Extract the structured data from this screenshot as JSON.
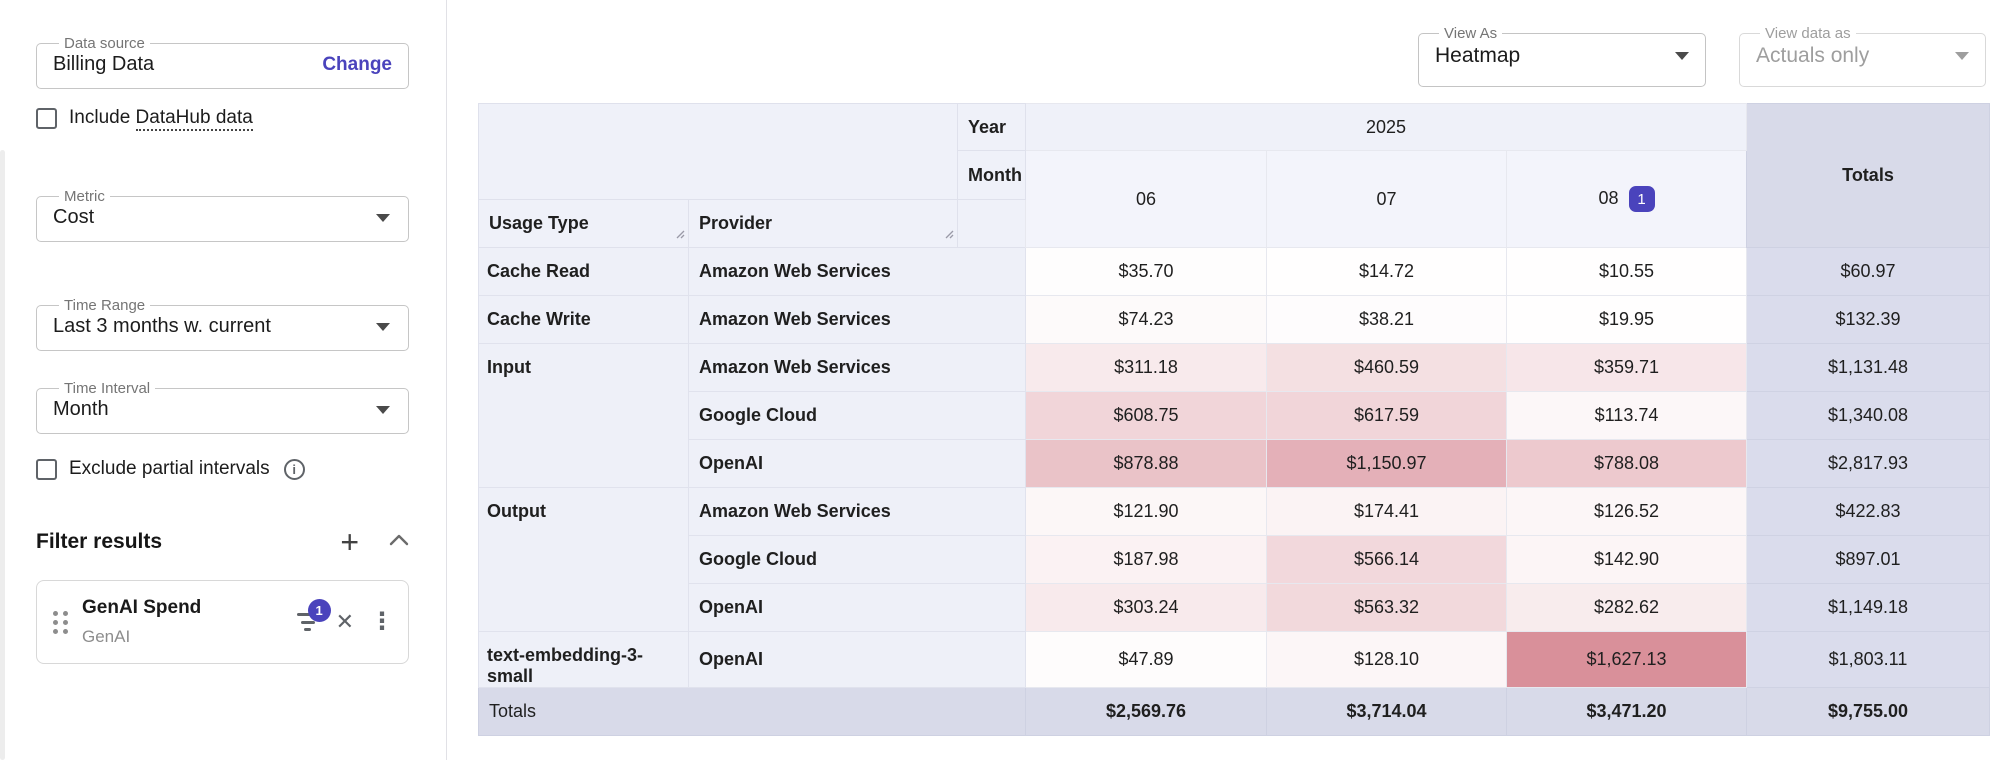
{
  "accent": "#4a43bc",
  "sidebar": {
    "data_source": {
      "label": "Data source",
      "value": "Billing Data",
      "action": "Change"
    },
    "include_datahub": {
      "prefix": "Include ",
      "link": "DataHub data"
    },
    "metric": {
      "label": "Metric",
      "value": "Cost"
    },
    "time_range": {
      "label": "Time Range",
      "value": "Last 3 months w. current"
    },
    "time_interval": {
      "label": "Time Interval",
      "value": "Month"
    },
    "exclude_partial": {
      "label": "Exclude partial intervals"
    },
    "filters": {
      "title": "Filter results",
      "items": [
        {
          "name": "GenAI Spend",
          "subtitle": "GenAI",
          "badge": "1"
        }
      ]
    }
  },
  "toolbar": {
    "view_as": {
      "label": "View As",
      "value": "Heatmap"
    },
    "view_data_as": {
      "label": "View data as",
      "value": "Actuals only",
      "disabled": true
    }
  },
  "pivot": {
    "year_label": "Year",
    "month_label": "Month",
    "year_value": "2025",
    "months": [
      "06",
      "07",
      "08"
    ],
    "month_badge": {
      "month": "08",
      "value": "1"
    },
    "dim1": "Usage Type",
    "dim2": "Provider",
    "totals_header": "Totals",
    "heat": {
      "max": 1627.13,
      "min_color": "#ffffff",
      "max_color": "#d9909a"
    },
    "groups": [
      {
        "usage_type": "Cache Read",
        "providers": [
          {
            "name": "Amazon Web Services",
            "values": [
              "$35.70",
              "$14.72",
              "$10.55"
            ],
            "heat": [
              35.7,
              14.72,
              10.55
            ],
            "total": "$60.97"
          }
        ]
      },
      {
        "usage_type": "Cache Write",
        "providers": [
          {
            "name": "Amazon Web Services",
            "values": [
              "$74.23",
              "$38.21",
              "$19.95"
            ],
            "heat": [
              74.23,
              38.21,
              19.95
            ],
            "total": "$132.39"
          }
        ]
      },
      {
        "usage_type": "Input",
        "providers": [
          {
            "name": "Amazon Web Services",
            "values": [
              "$311.18",
              "$460.59",
              "$359.71"
            ],
            "heat": [
              311.18,
              460.59,
              359.71
            ],
            "total": "$1,131.48"
          },
          {
            "name": "Google Cloud",
            "values": [
              "$608.75",
              "$617.59",
              "$113.74"
            ],
            "heat": [
              608.75,
              617.59,
              113.74
            ],
            "total": "$1,340.08"
          },
          {
            "name": "OpenAI",
            "values": [
              "$878.88",
              "$1,150.97",
              "$788.08"
            ],
            "heat": [
              878.88,
              1150.97,
              788.08
            ],
            "total": "$2,817.93"
          }
        ]
      },
      {
        "usage_type": "Output",
        "providers": [
          {
            "name": "Amazon Web Services",
            "values": [
              "$121.90",
              "$174.41",
              "$126.52"
            ],
            "heat": [
              121.9,
              174.41,
              126.52
            ],
            "total": "$422.83"
          },
          {
            "name": "Google Cloud",
            "values": [
              "$187.98",
              "$566.14",
              "$142.90"
            ],
            "heat": [
              187.98,
              566.14,
              142.9
            ],
            "total": "$897.01"
          },
          {
            "name": "OpenAI",
            "values": [
              "$303.24",
              "$563.32",
              "$282.62"
            ],
            "heat": [
              303.24,
              563.32,
              282.62
            ],
            "total": "$1,149.18"
          }
        ]
      },
      {
        "usage_type": "text-embedding-3-small",
        "providers": [
          {
            "name": "OpenAI",
            "values": [
              "$47.89",
              "$128.10",
              "$1,627.13"
            ],
            "heat": [
              47.89,
              128.1,
              1627.13
            ],
            "total": "$1,803.11"
          }
        ]
      }
    ],
    "totals_row": {
      "label": "Totals",
      "values": [
        "$2,569.76",
        "$3,714.04",
        "$3,471.20"
      ],
      "grand_total": "$9,755.00"
    }
  }
}
